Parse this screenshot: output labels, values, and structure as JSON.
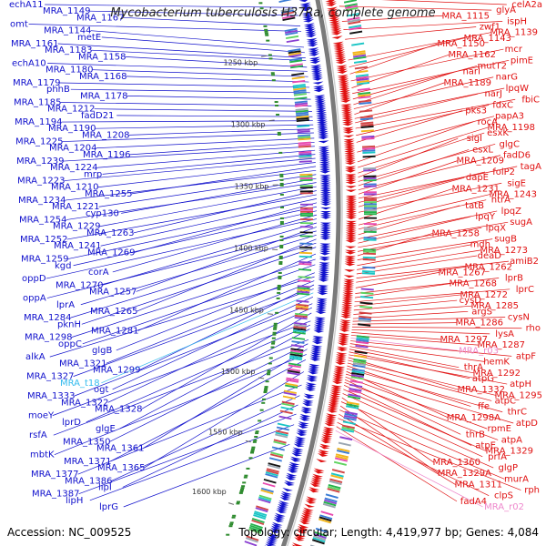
{
  "title": "Mycobacterium tuberculosis H37Ra, complete genome",
  "footer": {
    "accession": "Accession: NC_009525",
    "summary": "Topology: circular; Length: 4,419,977 bp; Genes: 4,084"
  },
  "colors": {
    "forward": "#1010cc",
    "reverse": "#e01010",
    "trna": "#33bbee",
    "rrna": "#ee88cc",
    "backbone": "#888888",
    "tick": "#666666"
  },
  "ticks": [
    {
      "label": "1250 kbp",
      "pos": 1250
    },
    {
      "label": "1300 kbp",
      "pos": 1300
    },
    {
      "label": "1350 kbp",
      "pos": 1350
    },
    {
      "label": "1400 kbp",
      "pos": 1400
    },
    {
      "label": "1450 kbp",
      "pos": 1450
    },
    {
      "label": "1500 kbp",
      "pos": 1500
    },
    {
      "label": "1550 kbp",
      "pos": 1550
    },
    {
      "label": "1600 kbp",
      "pos": 1600
    }
  ],
  "left_labels": [
    {
      "text": "echA11",
      "pos": 1218,
      "type": "forward"
    },
    {
      "text": "MRA_1149",
      "pos": 1224,
      "type": "forward"
    },
    {
      "text": "MRA_1167",
      "pos": 1232,
      "type": "forward"
    },
    {
      "text": "omt",
      "pos": 1236,
      "type": "forward"
    },
    {
      "text": "MRA_1144",
      "pos": 1248,
      "type": "forward"
    },
    {
      "text": "metE",
      "pos": 1252,
      "type": "forward"
    },
    {
      "text": "MRA_1161",
      "pos": 1256,
      "type": "forward"
    },
    {
      "text": "MRA_1183",
      "pos": 1258,
      "type": "forward"
    },
    {
      "text": "MRA_1158",
      "pos": 1263,
      "type": "forward"
    },
    {
      "text": "echA10",
      "pos": 1266,
      "type": "forward"
    },
    {
      "text": "MRA_1180",
      "pos": 1270,
      "type": "forward"
    },
    {
      "text": "MRA_1168",
      "pos": 1274,
      "type": "forward"
    },
    {
      "text": "MRA_1179",
      "pos": 1278,
      "type": "forward"
    },
    {
      "text": "phhB",
      "pos": 1282,
      "type": "forward"
    },
    {
      "text": "MRA_1178",
      "pos": 1287,
      "type": "forward"
    },
    {
      "text": "MRA_1185",
      "pos": 1292,
      "type": "forward"
    },
    {
      "text": "MRA_1212",
      "pos": 1296,
      "type": "forward"
    },
    {
      "text": "fadD21",
      "pos": 1300,
      "type": "forward"
    },
    {
      "text": "MRA_1194",
      "pos": 1303,
      "type": "forward"
    },
    {
      "text": "MRA_1190",
      "pos": 1306,
      "type": "forward"
    },
    {
      "text": "MRA_1208",
      "pos": 1309,
      "type": "forward"
    },
    {
      "text": "MRA_1225",
      "pos": 1312,
      "type": "forward"
    },
    {
      "text": "MRA_1204",
      "pos": 1316,
      "type": "forward"
    },
    {
      "text": "MRA_1196",
      "pos": 1319,
      "type": "forward"
    },
    {
      "text": "MRA_1239",
      "pos": 1322,
      "type": "forward"
    },
    {
      "text": "MRA_1224",
      "pos": 1325,
      "type": "forward"
    },
    {
      "text": "mrp",
      "pos": 1328,
      "type": "forward"
    },
    {
      "text": "MRA_1223",
      "pos": 1331,
      "type": "forward"
    },
    {
      "text": "MRA_1210",
      "pos": 1334,
      "type": "forward"
    },
    {
      "text": "MRA_1255",
      "pos": 1337,
      "type": "forward"
    },
    {
      "text": "MRA_1234",
      "pos": 1340,
      "type": "forward"
    },
    {
      "text": "MRA_1221",
      "pos": 1343,
      "type": "forward"
    },
    {
      "text": "cyp130",
      "pos": 1346,
      "type": "forward"
    },
    {
      "text": "MRA_1254",
      "pos": 1349,
      "type": "forward"
    },
    {
      "text": "MRA_1229",
      "pos": 1352,
      "type": "forward"
    },
    {
      "text": "MRA_1263",
      "pos": 1355,
      "type": "forward"
    },
    {
      "text": "MRA_1252",
      "pos": 1358,
      "type": "forward"
    },
    {
      "text": "MRA_1241",
      "pos": 1361,
      "type": "forward"
    },
    {
      "text": "MRA_1269",
      "pos": 1364,
      "type": "forward"
    },
    {
      "text": "MRA_1259",
      "pos": 1367,
      "type": "forward"
    },
    {
      "text": "kgd",
      "pos": 1370,
      "type": "forward"
    },
    {
      "text": "corA",
      "pos": 1373,
      "type": "forward"
    },
    {
      "text": "oppD",
      "pos": 1376,
      "type": "forward"
    },
    {
      "text": "MRA_1270",
      "pos": 1379,
      "type": "forward"
    },
    {
      "text": "MRA_1257",
      "pos": 1382,
      "type": "forward"
    },
    {
      "text": "oppA",
      "pos": 1385,
      "type": "forward"
    },
    {
      "text": "lprA",
      "pos": 1388,
      "type": "forward"
    },
    {
      "text": "MRA_1265",
      "pos": 1391,
      "type": "forward"
    },
    {
      "text": "MRA_1284",
      "pos": 1394,
      "type": "forward"
    },
    {
      "text": "pknH",
      "pos": 1397,
      "type": "forward"
    },
    {
      "text": "MRA_1281",
      "pos": 1402,
      "type": "forward"
    },
    {
      "text": "MRA_1298",
      "pos": 1406,
      "type": "forward"
    },
    {
      "text": "oppC",
      "pos": 1410,
      "type": "forward"
    },
    {
      "text": "glgB",
      "pos": 1416,
      "type": "forward"
    },
    {
      "text": "alkA",
      "pos": 1419,
      "type": "forward"
    },
    {
      "text": "MRA_1321",
      "pos": 1422,
      "type": "forward"
    },
    {
      "text": "MRA_1299",
      "pos": 1425,
      "type": "forward"
    },
    {
      "text": "MRA_1327",
      "pos": 1428,
      "type": "forward"
    },
    {
      "text": "MRA_t18",
      "pos": 1431,
      "type": "trna"
    },
    {
      "text": "ogt",
      "pos": 1434,
      "type": "forward"
    },
    {
      "text": "MRA_1333",
      "pos": 1439,
      "type": "forward"
    },
    {
      "text": "MRA_1322",
      "pos": 1442,
      "type": "forward"
    },
    {
      "text": "MRA_1328",
      "pos": 1446,
      "type": "forward"
    },
    {
      "text": "moeY",
      "pos": 1452,
      "type": "forward"
    },
    {
      "text": "lprD",
      "pos": 1455,
      "type": "forward"
    },
    {
      "text": "glgE",
      "pos": 1458,
      "type": "forward"
    },
    {
      "text": "rsfA",
      "pos": 1466,
      "type": "forward"
    },
    {
      "text": "MRA_1350",
      "pos": 1469,
      "type": "forward"
    },
    {
      "text": "MRA_1361",
      "pos": 1473,
      "type": "forward"
    },
    {
      "text": "mbtK",
      "pos": 1477,
      "type": "forward"
    },
    {
      "text": "MRA_1371",
      "pos": 1481,
      "type": "forward"
    },
    {
      "text": "MRA_1365",
      "pos": 1490,
      "type": "forward"
    },
    {
      "text": "MRA_1377",
      "pos": 1500,
      "type": "forward"
    },
    {
      "text": "MRA_1386",
      "pos": 1508,
      "type": "forward"
    },
    {
      "text": "lipI",
      "pos": 1515,
      "type": "forward"
    },
    {
      "text": "MRA_1387",
      "pos": 1522,
      "type": "forward"
    },
    {
      "text": "lipH",
      "pos": 1530,
      "type": "forward"
    },
    {
      "text": "lprG",
      "pos": 1545,
      "type": "forward"
    }
  ],
  "right_labels": [
    {
      "text": "celA2a",
      "pos": 1217,
      "type": "reverse"
    },
    {
      "text": "glyA",
      "pos": 1223,
      "type": "reverse"
    },
    {
      "text": "MRA_1115",
      "pos": 1234,
      "type": "reverse"
    },
    {
      "text": "ispH",
      "pos": 1240,
      "type": "reverse"
    },
    {
      "text": "zwf1",
      "pos": 1247,
      "type": "reverse"
    },
    {
      "text": "MRA_1139",
      "pos": 1262,
      "type": "reverse"
    },
    {
      "text": "MRA_1143",
      "pos": 1267,
      "type": "reverse"
    },
    {
      "text": "MRA_1150",
      "pos": 1272,
      "type": "reverse"
    },
    {
      "text": "mcr",
      "pos": 1277,
      "type": "reverse"
    },
    {
      "text": "MRA_1162",
      "pos": 1282,
      "type": "reverse"
    },
    {
      "text": "pimE",
      "pos": 1286,
      "type": "reverse"
    },
    {
      "text": "mutT2",
      "pos": 1290,
      "type": "reverse"
    },
    {
      "text": "narI",
      "pos": 1294,
      "type": "reverse"
    },
    {
      "text": "narG",
      "pos": 1297,
      "type": "reverse"
    },
    {
      "text": "MRA_1189",
      "pos": 1301,
      "type": "reverse"
    },
    {
      "text": "lpqW",
      "pos": 1304,
      "type": "reverse"
    },
    {
      "text": "narJ",
      "pos": 1307,
      "type": "reverse"
    },
    {
      "text": "fbiC",
      "pos": 1311,
      "type": "reverse"
    },
    {
      "text": "fdxC",
      "pos": 1316,
      "type": "reverse"
    },
    {
      "text": "pks3",
      "pos": 1321,
      "type": "reverse"
    },
    {
      "text": "papA3",
      "pos": 1328,
      "type": "reverse"
    },
    {
      "text": "rocA",
      "pos": 1335,
      "type": "reverse"
    },
    {
      "text": "MRA_1198",
      "pos": 1339,
      "type": "reverse"
    },
    {
      "text": "esxK",
      "pos": 1343,
      "type": "reverse"
    },
    {
      "text": "sigI",
      "pos": 1346,
      "type": "reverse"
    },
    {
      "text": "glgC",
      "pos": 1349,
      "type": "reverse"
    },
    {
      "text": "esxL",
      "pos": 1352,
      "type": "reverse"
    },
    {
      "text": "fadD6",
      "pos": 1355,
      "type": "reverse"
    },
    {
      "text": "MRA_1209",
      "pos": 1358,
      "type": "reverse"
    },
    {
      "text": "tagA",
      "pos": 1361,
      "type": "reverse"
    },
    {
      "text": "folP2",
      "pos": 1364,
      "type": "reverse"
    },
    {
      "text": "dapE",
      "pos": 1367,
      "type": "reverse"
    },
    {
      "text": "sigE",
      "pos": 1371,
      "type": "reverse"
    },
    {
      "text": "MRA_1231",
      "pos": 1376,
      "type": "reverse"
    },
    {
      "text": "MRA_1243",
      "pos": 1380,
      "type": "reverse"
    },
    {
      "text": "htrA",
      "pos": 1383,
      "type": "reverse"
    },
    {
      "text": "tatB",
      "pos": 1387,
      "type": "reverse"
    },
    {
      "text": "lpqZ",
      "pos": 1390,
      "type": "reverse"
    },
    {
      "text": "lpqY",
      "pos": 1393,
      "type": "reverse"
    },
    {
      "text": "sugA",
      "pos": 1396,
      "type": "reverse"
    },
    {
      "text": "lpqX",
      "pos": 1399,
      "type": "reverse"
    },
    {
      "text": "MRA_1258",
      "pos": 1402,
      "type": "reverse"
    },
    {
      "text": "sugB",
      "pos": 1405,
      "type": "reverse"
    },
    {
      "text": "mdh",
      "pos": 1409,
      "type": "reverse"
    },
    {
      "text": "MRA_1273",
      "pos": 1412,
      "type": "reverse"
    },
    {
      "text": "deaD",
      "pos": 1415,
      "type": "reverse"
    },
    {
      "text": "amiB2",
      "pos": 1418,
      "type": "reverse"
    },
    {
      "text": "MRA_1262",
      "pos": 1421,
      "type": "reverse"
    },
    {
      "text": "MRA_1267",
      "pos": 1425,
      "type": "reverse"
    },
    {
      "text": "lprB",
      "pos": 1429,
      "type": "reverse"
    },
    {
      "text": "MRA_1268",
      "pos": 1432,
      "type": "reverse"
    },
    {
      "text": "lprC",
      "pos": 1435,
      "type": "reverse"
    },
    {
      "text": "MRA_1272",
      "pos": 1438,
      "type": "reverse"
    },
    {
      "text": "cysD",
      "pos": 1441,
      "type": "reverse"
    },
    {
      "text": "MRA_1285",
      "pos": 1444,
      "type": "reverse"
    },
    {
      "text": "argS",
      "pos": 1447,
      "type": "reverse"
    },
    {
      "text": "cysN",
      "pos": 1449,
      "type": "reverse"
    },
    {
      "text": "MRA_1286",
      "pos": 1451,
      "type": "reverse"
    },
    {
      "text": "rho",
      "pos": 1453,
      "type": "reverse"
    },
    {
      "text": "lysA",
      "pos": 1455,
      "type": "reverse"
    },
    {
      "text": "MRA_1297",
      "pos": 1457,
      "type": "reverse"
    },
    {
      "text": "MRA_1287",
      "pos": 1459,
      "type": "reverse"
    },
    {
      "text": "MRA_r03",
      "pos": 1461,
      "type": "rrna"
    },
    {
      "text": "atpF",
      "pos": 1463,
      "type": "reverse"
    },
    {
      "text": "hemK",
      "pos": 1465,
      "type": "reverse"
    },
    {
      "text": "thrA",
      "pos": 1467,
      "type": "reverse"
    },
    {
      "text": "MRA_1292",
      "pos": 1469,
      "type": "reverse"
    },
    {
      "text": "atpG",
      "pos": 1471,
      "type": "reverse"
    },
    {
      "text": "atpH",
      "pos": 1473,
      "type": "reverse"
    },
    {
      "text": "MRA_1332",
      "pos": 1475,
      "type": "reverse"
    },
    {
      "text": "MRA_1295",
      "pos": 1477,
      "type": "reverse"
    },
    {
      "text": "atpC",
      "pos": 1479,
      "type": "reverse"
    },
    {
      "text": "ffe",
      "pos": 1481,
      "type": "reverse"
    },
    {
      "text": "thrC",
      "pos": 1483,
      "type": "reverse"
    },
    {
      "text": "MRA_1298A",
      "pos": 1485,
      "type": "reverse"
    },
    {
      "text": "atpD",
      "pos": 1487,
      "type": "reverse"
    },
    {
      "text": "rpmE",
      "pos": 1489,
      "type": "reverse"
    },
    {
      "text": "thrB",
      "pos": 1491,
      "type": "reverse"
    },
    {
      "text": "atpA",
      "pos": 1493,
      "type": "reverse"
    },
    {
      "text": "atpE",
      "pos": 1495,
      "type": "reverse"
    },
    {
      "text": "MRA_1329",
      "pos": 1498,
      "type": "reverse"
    },
    {
      "text": "prfA",
      "pos": 1501,
      "type": "reverse"
    },
    {
      "text": "MRA_1360",
      "pos": 1504,
      "type": "reverse"
    },
    {
      "text": "glgP",
      "pos": 1507,
      "type": "reverse"
    },
    {
      "text": "MRA_1329A",
      "pos": 1510,
      "type": "reverse"
    },
    {
      "text": "murA",
      "pos": 1513,
      "type": "reverse"
    },
    {
      "text": "MRA_1311",
      "pos": 1516,
      "type": "reverse"
    },
    {
      "text": "rph",
      "pos": 1519,
      "type": "reverse"
    },
    {
      "text": "clpS",
      "pos": 1522,
      "type": "reverse"
    },
    {
      "text": "fadA4",
      "pos": 1525,
      "type": "reverse"
    },
    {
      "text": "MRA_r02",
      "pos": 1528,
      "type": "rrna"
    }
  ]
}
